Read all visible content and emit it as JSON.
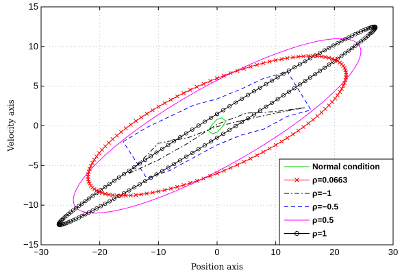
{
  "chart_data": {
    "type": "line",
    "title": "",
    "xlabel": "Position axis",
    "ylabel": "Velocity axis",
    "xlim": [
      -30,
      30
    ],
    "ylim": [
      -15,
      15
    ],
    "xticks": [
      -30,
      -20,
      -10,
      0,
      10,
      20,
      30
    ],
    "yticks": [
      -15,
      -10,
      -5,
      0,
      5,
      10,
      15
    ],
    "xtick_labels": [
      "−30",
      "−20",
      "−10",
      "0",
      "10",
      "20",
      "30"
    ],
    "ytick_labels": [
      "−15",
      "−10",
      "−5",
      "0",
      "5",
      "10",
      "15"
    ],
    "grid": true,
    "legend_position": "bottom-right",
    "series": [
      {
        "name": "Normal condition",
        "style": "solid",
        "marker": "none",
        "color": "#00cc00",
        "x": [
          -1.5,
          -0.8,
          0,
          0.8,
          1.5,
          0.8,
          0,
          -0.8,
          -1.5
        ],
        "y": [
          -0.6,
          0.2,
          0.8,
          1.0,
          0.6,
          -0.2,
          -0.8,
          -1.0,
          -0.6
        ]
      },
      {
        "name": "ρ=0.0663",
        "style": "solid",
        "marker": "x",
        "color": "#ff0000",
        "ellipse": {
          "amplitude_x": 22,
          "amplitude_y": 8.8,
          "phase_rad": 0.75,
          "points": 120
        }
      },
      {
        "name": "ρ=−1",
        "style": "dashdot",
        "marker": "none",
        "color": "#000000",
        "x": [
          -15,
          -10,
          -5,
          0,
          5,
          10,
          15,
          10,
          5,
          0,
          -5,
          -10,
          -15
        ],
        "y": [
          -6,
          -4.3,
          -2.2,
          0.2,
          1.6,
          1.8,
          2.3,
          1.6,
          0.8,
          -0.1,
          -1.5,
          -2.2,
          -6
        ]
      },
      {
        "name": "ρ=−0.5",
        "style": "dashed",
        "marker": "none",
        "color": "#0000ff",
        "x": [
          -16,
          -12,
          -8,
          -4,
          0,
          4,
          8,
          12,
          16,
          12,
          8,
          4,
          0,
          -4,
          -8,
          -12,
          -16
        ],
        "y": [
          -2,
          -0.2,
          1.2,
          2.6,
          3.4,
          4.6,
          6.0,
          6.8,
          2.0,
          1.2,
          -0.4,
          -1.2,
          -2.4,
          -4.0,
          -5.6,
          -6.6,
          -2.0
        ]
      },
      {
        "name": "ρ=0.5",
        "style": "solid",
        "marker": "none",
        "color": "#ff00ff",
        "ellipse": {
          "amplitude_x": 24.5,
          "amplitude_y": 11,
          "phase_rad": 0.55,
          "points": 180
        }
      },
      {
        "name": "ρ=1",
        "style": "solid",
        "marker": "o",
        "color": "#000000",
        "ellipse": {
          "amplitude_x": 27,
          "amplitude_y": 12.5,
          "phase_rad": 0.12,
          "points": 160
        }
      }
    ]
  }
}
